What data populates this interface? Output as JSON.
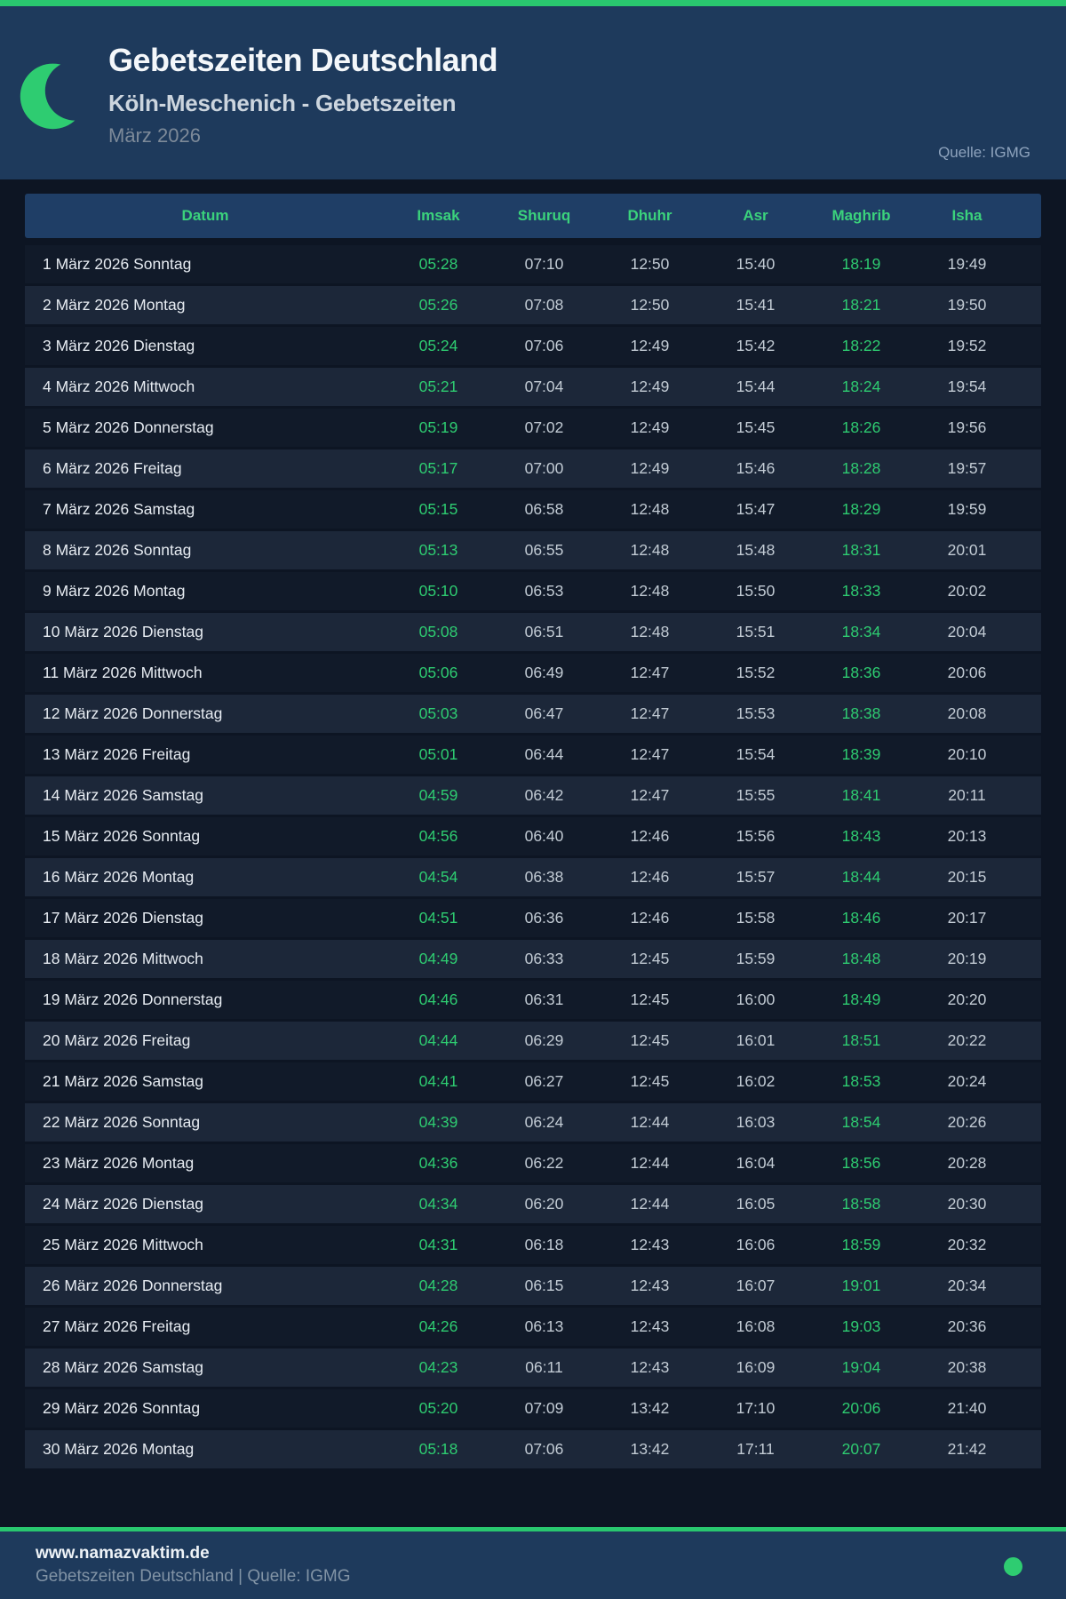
{
  "meta": {
    "accent_green": "#2ecc71",
    "topbar_green": "#29c76f",
    "header_bg": "#1e3a5c",
    "page_bg": "#0d1523",
    "table_header_bg": "#1f3e66",
    "row_odd_bg": "#111a29",
    "row_even_bg": "#1c2739",
    "header_label_green": "#3bd27c"
  },
  "header": {
    "title": "Gebetszeiten Deutschland",
    "subtitle": "Köln-Meschenich - Gebetszeiten",
    "period": "März 2026",
    "source": "Quelle: IGMG",
    "moon_icon": "crescent-moon-icon"
  },
  "table": {
    "columns": [
      "Datum",
      "Imsak",
      "Shuruq",
      "Dhuhr",
      "Asr",
      "Maghrib",
      "Isha"
    ],
    "green_time_indexes": [
      0,
      4
    ],
    "rows": [
      {
        "date": "1 März 2026 Sonntag",
        "times": [
          "05:28",
          "07:10",
          "12:50",
          "15:40",
          "18:19",
          "19:49"
        ]
      },
      {
        "date": "2 März 2026 Montag",
        "times": [
          "05:26",
          "07:08",
          "12:50",
          "15:41",
          "18:21",
          "19:50"
        ]
      },
      {
        "date": "3 März 2026 Dienstag",
        "times": [
          "05:24",
          "07:06",
          "12:49",
          "15:42",
          "18:22",
          "19:52"
        ]
      },
      {
        "date": "4 März 2026 Mittwoch",
        "times": [
          "05:21",
          "07:04",
          "12:49",
          "15:44",
          "18:24",
          "19:54"
        ]
      },
      {
        "date": "5 März 2026 Donnerstag",
        "times": [
          "05:19",
          "07:02",
          "12:49",
          "15:45",
          "18:26",
          "19:56"
        ]
      },
      {
        "date": "6 März 2026 Freitag",
        "times": [
          "05:17",
          "07:00",
          "12:49",
          "15:46",
          "18:28",
          "19:57"
        ]
      },
      {
        "date": "7 März 2026 Samstag",
        "times": [
          "05:15",
          "06:58",
          "12:48",
          "15:47",
          "18:29",
          "19:59"
        ]
      },
      {
        "date": "8 März 2026 Sonntag",
        "times": [
          "05:13",
          "06:55",
          "12:48",
          "15:48",
          "18:31",
          "20:01"
        ]
      },
      {
        "date": "9 März 2026 Montag",
        "times": [
          "05:10",
          "06:53",
          "12:48",
          "15:50",
          "18:33",
          "20:02"
        ]
      },
      {
        "date": "10 März 2026 Dienstag",
        "times": [
          "05:08",
          "06:51",
          "12:48",
          "15:51",
          "18:34",
          "20:04"
        ]
      },
      {
        "date": "11 März 2026 Mittwoch",
        "times": [
          "05:06",
          "06:49",
          "12:47",
          "15:52",
          "18:36",
          "20:06"
        ]
      },
      {
        "date": "12 März 2026 Donnerstag",
        "times": [
          "05:03",
          "06:47",
          "12:47",
          "15:53",
          "18:38",
          "20:08"
        ]
      },
      {
        "date": "13 März 2026 Freitag",
        "times": [
          "05:01",
          "06:44",
          "12:47",
          "15:54",
          "18:39",
          "20:10"
        ]
      },
      {
        "date": "14 März 2026 Samstag",
        "times": [
          "04:59",
          "06:42",
          "12:47",
          "15:55",
          "18:41",
          "20:11"
        ]
      },
      {
        "date": "15 März 2026 Sonntag",
        "times": [
          "04:56",
          "06:40",
          "12:46",
          "15:56",
          "18:43",
          "20:13"
        ]
      },
      {
        "date": "16 März 2026 Montag",
        "times": [
          "04:54",
          "06:38",
          "12:46",
          "15:57",
          "18:44",
          "20:15"
        ]
      },
      {
        "date": "17 März 2026 Dienstag",
        "times": [
          "04:51",
          "06:36",
          "12:46",
          "15:58",
          "18:46",
          "20:17"
        ]
      },
      {
        "date": "18 März 2026 Mittwoch",
        "times": [
          "04:49",
          "06:33",
          "12:45",
          "15:59",
          "18:48",
          "20:19"
        ]
      },
      {
        "date": "19 März 2026 Donnerstag",
        "times": [
          "04:46",
          "06:31",
          "12:45",
          "16:00",
          "18:49",
          "20:20"
        ]
      },
      {
        "date": "20 März 2026 Freitag",
        "times": [
          "04:44",
          "06:29",
          "12:45",
          "16:01",
          "18:51",
          "20:22"
        ]
      },
      {
        "date": "21 März 2026 Samstag",
        "times": [
          "04:41",
          "06:27",
          "12:45",
          "16:02",
          "18:53",
          "20:24"
        ]
      },
      {
        "date": "22 März 2026 Sonntag",
        "times": [
          "04:39",
          "06:24",
          "12:44",
          "16:03",
          "18:54",
          "20:26"
        ]
      },
      {
        "date": "23 März 2026 Montag",
        "times": [
          "04:36",
          "06:22",
          "12:44",
          "16:04",
          "18:56",
          "20:28"
        ]
      },
      {
        "date": "24 März 2026 Dienstag",
        "times": [
          "04:34",
          "06:20",
          "12:44",
          "16:05",
          "18:58",
          "20:30"
        ]
      },
      {
        "date": "25 März 2026 Mittwoch",
        "times": [
          "04:31",
          "06:18",
          "12:43",
          "16:06",
          "18:59",
          "20:32"
        ]
      },
      {
        "date": "26 März 2026 Donnerstag",
        "times": [
          "04:28",
          "06:15",
          "12:43",
          "16:07",
          "19:01",
          "20:34"
        ]
      },
      {
        "date": "27 März 2026 Freitag",
        "times": [
          "04:26",
          "06:13",
          "12:43",
          "16:08",
          "19:03",
          "20:36"
        ]
      },
      {
        "date": "28 März 2026 Samstag",
        "times": [
          "04:23",
          "06:11",
          "12:43",
          "16:09",
          "19:04",
          "20:38"
        ]
      },
      {
        "date": "29 März 2026 Sonntag",
        "times": [
          "05:20",
          "07:09",
          "13:42",
          "17:10",
          "20:06",
          "21:40"
        ]
      },
      {
        "date": "30 März 2026 Montag",
        "times": [
          "05:18",
          "07:06",
          "13:42",
          "17:11",
          "20:07",
          "21:42"
        ]
      }
    ]
  },
  "footer": {
    "site": "www.namazvaktim.de",
    "line2": "Gebetszeiten Deutschland | Quelle: IGMG"
  }
}
